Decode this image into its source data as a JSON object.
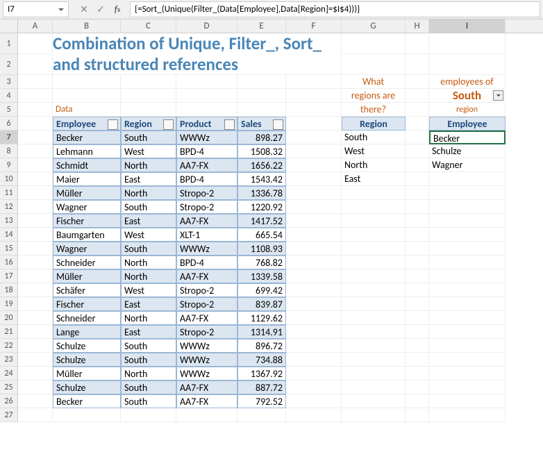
{
  "formula_bar": {
    "cell_ref": "I7",
    "formula": "{=Sort_(Unique(Filter_(Data[Employee],Data[Region]=$I$4)))}"
  },
  "columns": [
    "A",
    "B",
    "C",
    "D",
    "E",
    "F",
    "G",
    "H",
    "I"
  ],
  "row_numbers": [
    1,
    2,
    3,
    4,
    5,
    6,
    7,
    8,
    9,
    10,
    11,
    12,
    13,
    14,
    15,
    16,
    17,
    18,
    19,
    20,
    21,
    22,
    23,
    24,
    25,
    26,
    27
  ],
  "title": {
    "line1": "Combination of Unique, Filter_, Sort_",
    "line2": "and structured references"
  },
  "table_label": "Data",
  "table_headers": [
    "Employee",
    "Region",
    "Product",
    "Sales"
  ],
  "data_rows": [
    {
      "employee": "Becker",
      "region": "South",
      "product": "WWWz",
      "sales": "898.27"
    },
    {
      "employee": "Lehmann",
      "region": "West",
      "product": "BPD-4",
      "sales": "1508.32"
    },
    {
      "employee": "Schmidt",
      "region": "North",
      "product": "AA7-FX",
      "sales": "1656.22"
    },
    {
      "employee": "Maier",
      "region": "East",
      "product": "BPD-4",
      "sales": "1543.42"
    },
    {
      "employee": "Müller",
      "region": "North",
      "product": "Stropo-2",
      "sales": "1336.78"
    },
    {
      "employee": "Wagner",
      "region": "South",
      "product": "Stropo-2",
      "sales": "1220.92"
    },
    {
      "employee": "Fischer",
      "region": "East",
      "product": "AA7-FX",
      "sales": "1417.52"
    },
    {
      "employee": "Baumgarten",
      "region": "West",
      "product": "XLT-1",
      "sales": "665.54"
    },
    {
      "employee": "Wagner",
      "region": "South",
      "product": "WWWz",
      "sales": "1108.93"
    },
    {
      "employee": "Schneider",
      "region": "North",
      "product": "BPD-4",
      "sales": "768.82"
    },
    {
      "employee": "Müller",
      "region": "North",
      "product": "AA7-FX",
      "sales": "1339.58"
    },
    {
      "employee": "Schäfer",
      "region": "West",
      "product": "Stropo-2",
      "sales": "699.42"
    },
    {
      "employee": "Fischer",
      "region": "East",
      "product": "Stropo-2",
      "sales": "839.87"
    },
    {
      "employee": "Schneider",
      "region": "North",
      "product": "AA7-FX",
      "sales": "1129.62"
    },
    {
      "employee": "Lange",
      "region": "East",
      "product": "Stropo-2",
      "sales": "1314.91"
    },
    {
      "employee": "Schulze",
      "region": "South",
      "product": "WWWz",
      "sales": "896.72"
    },
    {
      "employee": "Schulze",
      "region": "South",
      "product": "WWWz",
      "sales": "734.88"
    },
    {
      "employee": "Müller",
      "region": "North",
      "product": "WWWz",
      "sales": "1367.92"
    },
    {
      "employee": "Schulze",
      "region": "South",
      "product": "AA7-FX",
      "sales": "887.72"
    },
    {
      "employee": "Becker",
      "region": "South",
      "product": "AA7-FX",
      "sales": "792.52"
    }
  ],
  "question": {
    "line1": "What",
    "line2": "regions are",
    "line3": "there?",
    "header": "Region"
  },
  "regions": [
    "South",
    "West",
    "North",
    "East"
  ],
  "employees_block": {
    "label": "employees of",
    "selected_region": "South",
    "region_word": "region",
    "header": "Employee"
  },
  "employees_result": [
    "Becker",
    "Schulze",
    "Wagner"
  ],
  "colors": {
    "header_bg": "#dce6f1",
    "header_border": "#9bb7d5",
    "band": "#dce6f1",
    "title": "#5b9bd5",
    "accent": "#c55a11",
    "active": "#217346"
  }
}
